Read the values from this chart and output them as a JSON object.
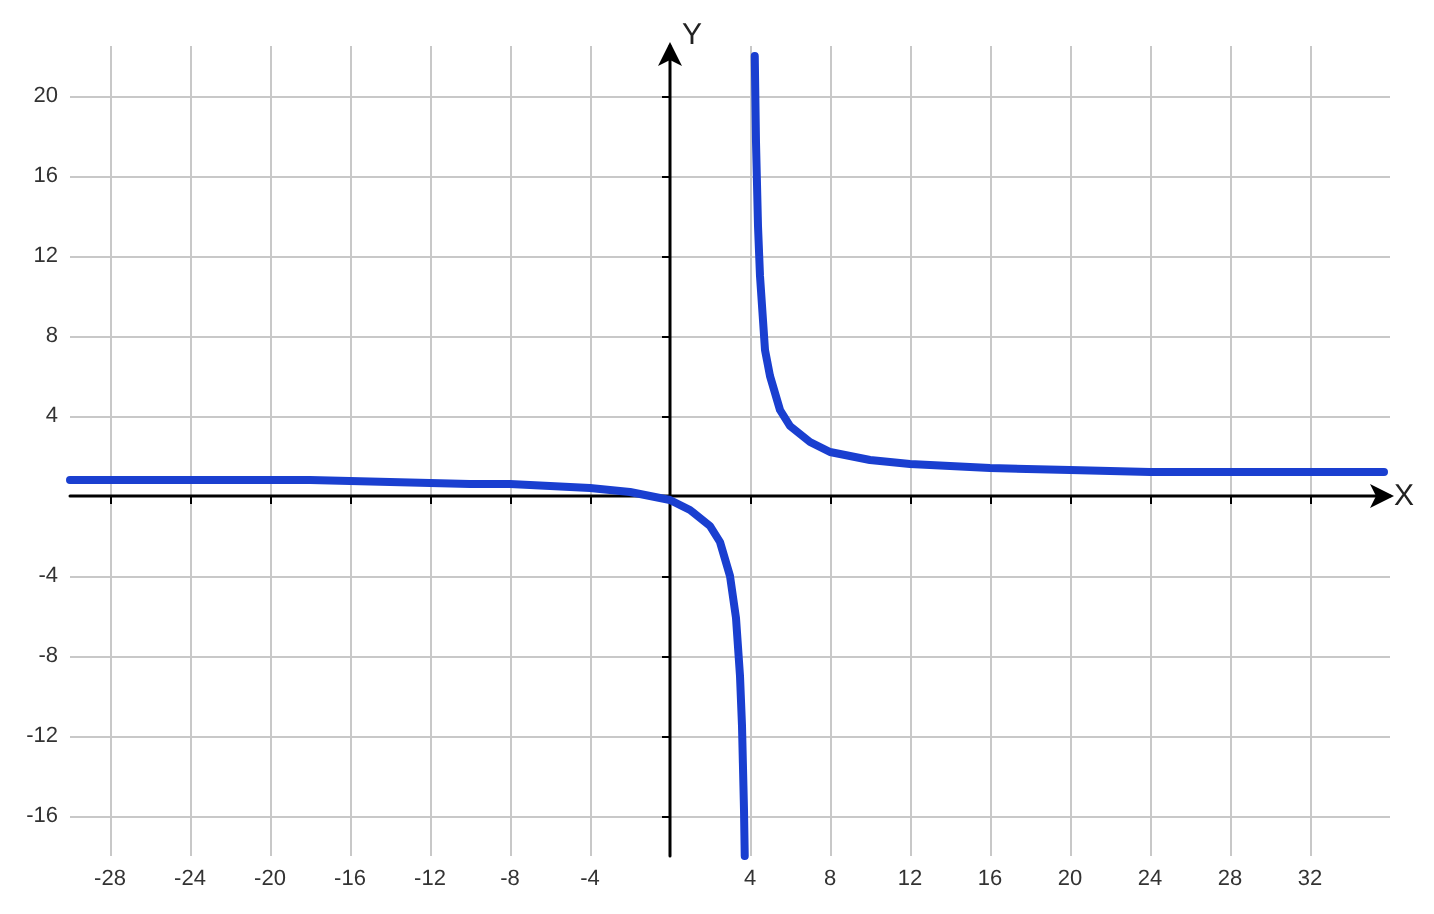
{
  "chart_data": {
    "type": "line",
    "xlabel": "X",
    "ylabel": "Y",
    "xlim": [
      -30,
      36
    ],
    "ylim": [
      -18,
      22.5
    ],
    "xticks": [
      -28,
      -24,
      -20,
      -16,
      -12,
      -8,
      -4,
      4,
      8,
      12,
      16,
      20,
      24,
      28,
      32
    ],
    "yticks": [
      -16,
      -12,
      -8,
      -4,
      4,
      8,
      12,
      16,
      20
    ],
    "grid": true,
    "marker": "none",
    "line_style": "solid",
    "series": [
      {
        "color": "#1a3fd0",
        "x": [
          -30,
          -26,
          -22,
          -18,
          -14,
          -10,
          -8,
          -6,
          -4,
          -2,
          -1,
          0,
          1,
          2,
          2.5,
          3,
          3.3,
          3.5,
          3.6,
          3.7,
          3.737
        ],
        "values": [
          0.8,
          0.8,
          0.8,
          0.8,
          0.7,
          0.6,
          0.6,
          0.5,
          0.4,
          0.2,
          0,
          -0.2,
          -0.7,
          -1.5,
          -2.3,
          -4,
          -6.1,
          -9,
          -11.5,
          -15.7,
          -18
        ]
      },
      {
        "color": "#1a3fd0",
        "x": [
          4.238,
          4.3,
          4.4,
          4.5,
          4.75,
          5,
          5.5,
          6,
          7,
          8,
          10,
          12,
          16,
          20,
          24,
          28,
          32,
          35.7
        ],
        "values": [
          22,
          17.7,
          13.5,
          11,
          7.3,
          6,
          4.3,
          3.5,
          2.7,
          2.2,
          1.8,
          1.6,
          1.4,
          1.3,
          1.2,
          1.2,
          1.2,
          1.2
        ]
      }
    ]
  }
}
